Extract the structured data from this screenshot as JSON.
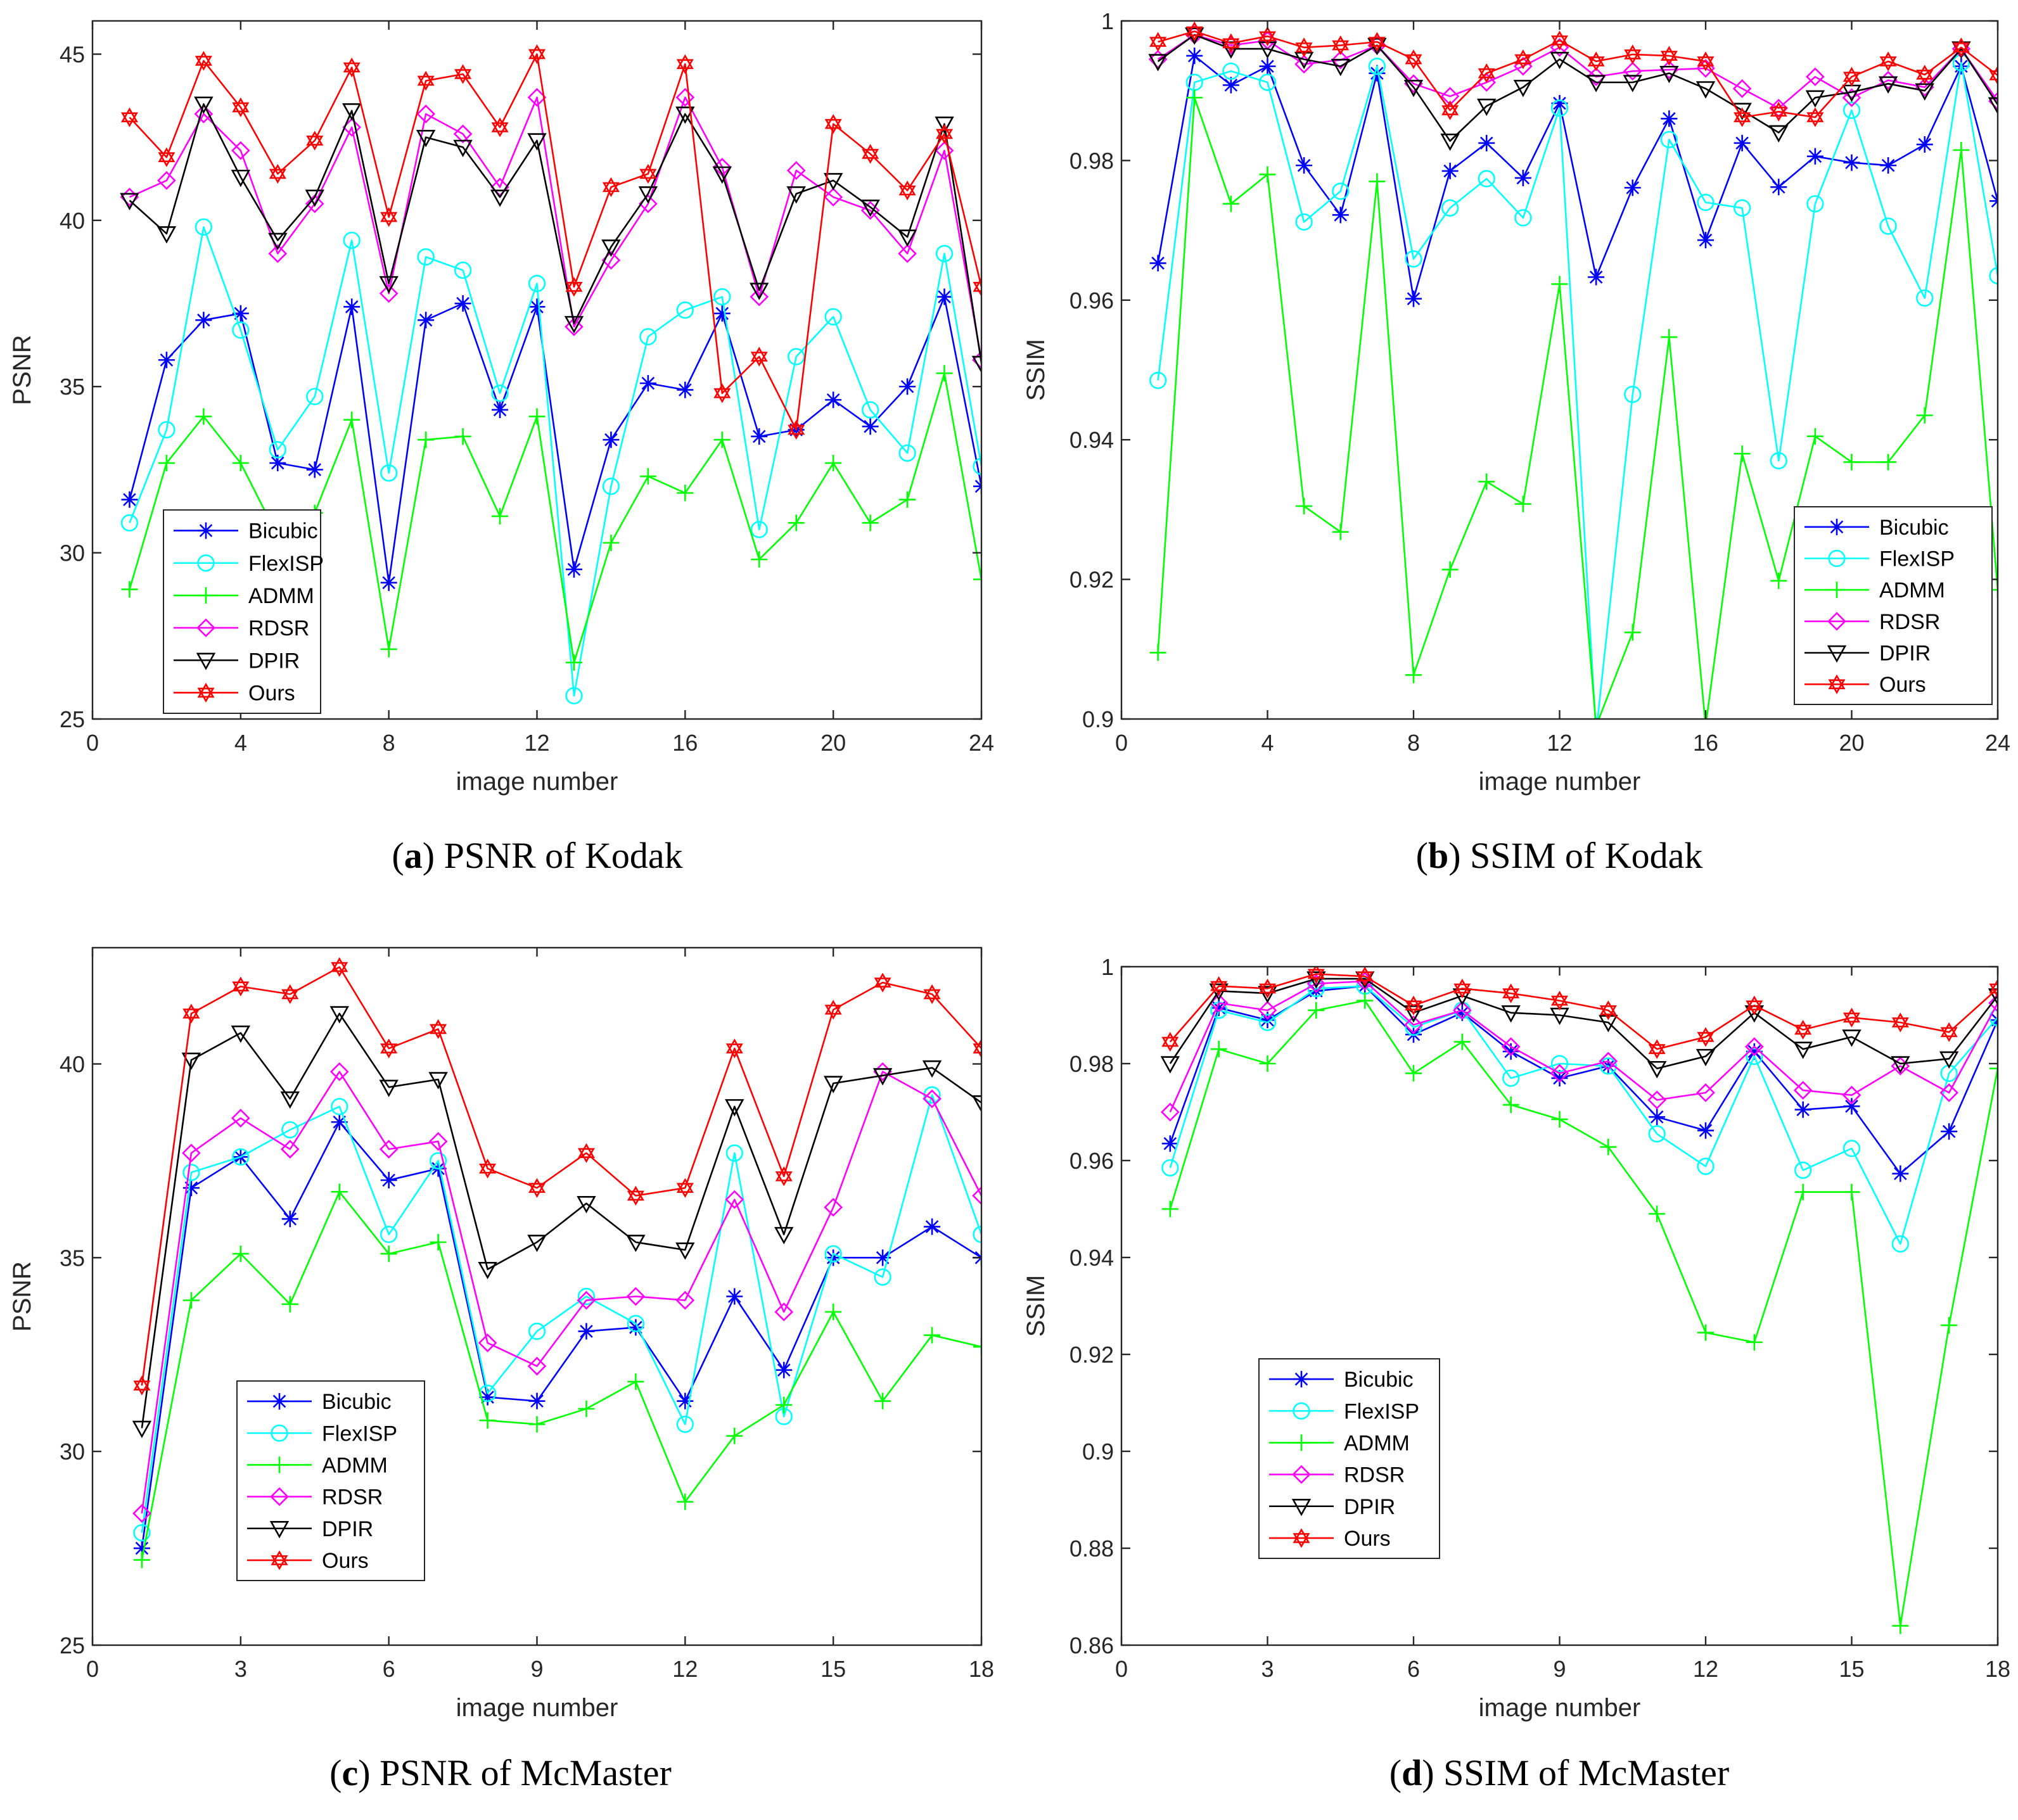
{
  "chart_data": [
    {
      "type": "line",
      "caption_letter": "a",
      "caption_text": "PSNR of Kodak",
      "xlabel": "image number",
      "ylabel": "PSNR",
      "xlim": [
        0,
        24
      ],
      "ylim": [
        25,
        46
      ],
      "xticks": [
        0,
        4,
        8,
        12,
        16,
        20,
        24
      ],
      "yticks": [
        25,
        30,
        35,
        40,
        45
      ],
      "grid": false,
      "legend_position": "lower-left",
      "x": [
        1,
        2,
        3,
        4,
        5,
        6,
        7,
        8,
        9,
        10,
        11,
        12,
        13,
        14,
        15,
        16,
        17,
        18,
        19,
        20,
        21,
        22,
        23,
        24
      ],
      "series": [
        {
          "name": "Bicubic",
          "color": "#0000ff",
          "marker": "asterisk",
          "values": [
            31.6,
            35.8,
            37.0,
            37.2,
            32.7,
            32.5,
            37.4,
            29.1,
            37.0,
            37.5,
            34.3,
            37.4,
            29.5,
            33.4,
            35.1,
            34.9,
            37.2,
            33.5,
            33.7,
            34.6,
            33.8,
            35.0,
            37.7,
            32.0
          ]
        },
        {
          "name": "FlexISP",
          "color": "#00ffff",
          "marker": "circle",
          "values": [
            30.9,
            33.7,
            39.8,
            36.7,
            33.1,
            34.7,
            39.4,
            32.4,
            38.9,
            38.5,
            34.8,
            38.1,
            25.7,
            32.0,
            36.5,
            37.3,
            37.7,
            30.7,
            35.9,
            37.1,
            34.3,
            33.0,
            39.0,
            32.6
          ]
        },
        {
          "name": "ADMM",
          "color": "#00ff00",
          "marker": "plus",
          "values": [
            28.9,
            32.7,
            34.1,
            32.7,
            30.5,
            31.2,
            34.0,
            27.1,
            33.4,
            33.5,
            31.1,
            34.1,
            26.7,
            30.3,
            32.3,
            31.8,
            33.4,
            29.8,
            30.9,
            32.7,
            30.9,
            31.6,
            35.4,
            29.2
          ]
        },
        {
          "name": "RDSR",
          "color": "#ff00ff",
          "marker": "diamond",
          "values": [
            40.7,
            41.2,
            43.2,
            42.1,
            39.0,
            40.5,
            42.8,
            37.8,
            43.2,
            42.6,
            41.0,
            43.7,
            36.8,
            38.8,
            40.5,
            43.7,
            41.6,
            37.7,
            41.5,
            40.7,
            40.3,
            39.0,
            42.1,
            35.8
          ]
        },
        {
          "name": "DPIR",
          "color": "#000000",
          "marker": "triangle-down",
          "values": [
            40.6,
            39.6,
            43.5,
            41.3,
            39.4,
            40.7,
            43.3,
            38.1,
            42.5,
            42.2,
            40.7,
            42.4,
            36.9,
            39.2,
            40.8,
            43.2,
            41.4,
            37.9,
            40.8,
            41.2,
            40.4,
            39.5,
            42.9,
            35.7
          ]
        },
        {
          "name": "Ours",
          "color": "#ff0000",
          "marker": "hexagram",
          "values": [
            43.1,
            41.9,
            44.8,
            43.4,
            41.4,
            42.4,
            44.6,
            40.1,
            44.2,
            44.4,
            42.8,
            45.0,
            38.0,
            41.0,
            41.4,
            44.7,
            34.8,
            35.9,
            33.7,
            42.9,
            42.0,
            40.9,
            42.6,
            38.0
          ]
        }
      ]
    },
    {
      "type": "line",
      "caption_letter": "b",
      "caption_text": "SSIM of Kodak",
      "xlabel": "image number",
      "ylabel": "SSIM",
      "xlim": [
        0,
        24
      ],
      "ylim": [
        0.9,
        1.0
      ],
      "xticks": [
        0,
        4,
        8,
        12,
        16,
        20,
        24
      ],
      "yticks": [
        0.9,
        0.92,
        0.94,
        0.96,
        0.98,
        1
      ],
      "grid": false,
      "legend_position": "lower-right",
      "x": [
        1,
        2,
        3,
        4,
        5,
        6,
        7,
        8,
        9,
        10,
        11,
        12,
        13,
        14,
        15,
        16,
        17,
        18,
        19,
        20,
        21,
        22,
        23,
        24
      ],
      "series": [
        {
          "name": "Bicubic",
          "color": "#0000ff",
          "marker": "asterisk",
          "values": [
            0.9653,
            0.995,
            0.9908,
            0.9935,
            0.9793,
            0.9722,
            0.9925,
            0.9602,
            0.9785,
            0.9825,
            0.9775,
            0.9882,
            0.9633,
            0.9761,
            0.986,
            0.9686,
            0.9825,
            0.9762,
            0.9806,
            0.9797,
            0.9793,
            0.9823,
            0.9935,
            0.9742
          ]
        },
        {
          "name": "FlexISP",
          "color": "#00ffff",
          "marker": "circle",
          "values": [
            0.9485,
            0.9912,
            0.9928,
            0.9912,
            0.9712,
            0.9756,
            0.9935,
            0.9659,
            0.9732,
            0.9774,
            0.9718,
            0.9875,
            0.898,
            0.9465,
            0.983,
            0.974,
            0.9732,
            0.937,
            0.9738,
            0.9872,
            0.9706,
            0.9603,
            0.994,
            0.9635
          ]
        },
        {
          "name": "ADMM",
          "color": "#00ff00",
          "marker": "plus",
          "values": [
            0.9095,
            0.989,
            0.9738,
            0.978,
            0.9305,
            0.9268,
            0.977,
            0.9063,
            0.9214,
            0.934,
            0.9308,
            0.9623,
            0.899,
            0.9124,
            0.9547,
            0.899,
            0.938,
            0.9198,
            0.9405,
            0.9368,
            0.9368,
            0.9435,
            0.9815,
            0.9185
          ]
        },
        {
          "name": "RDSR",
          "color": "#ff00ff",
          "marker": "diamond",
          "values": [
            0.9945,
            0.998,
            0.9965,
            0.9972,
            0.9938,
            0.9944,
            0.9965,
            0.991,
            0.9892,
            0.9912,
            0.9935,
            0.9962,
            0.992,
            0.9928,
            0.993,
            0.9932,
            0.9903,
            0.9875,
            0.992,
            0.989,
            0.9915,
            0.9905,
            0.996,
            0.9885
          ]
        },
        {
          "name": "DPIR",
          "color": "#000000",
          "marker": "triangle-down",
          "values": [
            0.9942,
            0.998,
            0.996,
            0.996,
            0.9945,
            0.9935,
            0.9965,
            0.9905,
            0.9828,
            0.9878,
            0.9905,
            0.9945,
            0.9912,
            0.9912,
            0.9925,
            0.9903,
            0.9872,
            0.984,
            0.989,
            0.9898,
            0.991,
            0.99,
            0.996,
            0.988
          ]
        },
        {
          "name": "Ours",
          "color": "#ff0000",
          "marker": "hexagram",
          "values": [
            0.997,
            0.9985,
            0.9968,
            0.9978,
            0.9962,
            0.9965,
            0.997,
            0.9945,
            0.9872,
            0.9925,
            0.9945,
            0.9972,
            0.9942,
            0.9952,
            0.995,
            0.9942,
            0.9862,
            0.987,
            0.9862,
            0.992,
            0.9942,
            0.9923,
            0.9962,
            0.9922
          ]
        }
      ]
    },
    {
      "type": "line",
      "caption_letter": "c",
      "caption_text": "PSNR of McMaster",
      "xlabel": "image number",
      "ylabel": "PSNR",
      "xlim": [
        0,
        18
      ],
      "ylim": [
        25,
        43
      ],
      "xticks": [
        0,
        3,
        6,
        9,
        12,
        15,
        18
      ],
      "yticks": [
        25,
        30,
        35,
        40
      ],
      "grid": false,
      "legend_position": "lower-left",
      "x": [
        1,
        2,
        3,
        4,
        5,
        6,
        7,
        8,
        9,
        10,
        11,
        12,
        13,
        14,
        15,
        16,
        17,
        18
      ],
      "series": [
        {
          "name": "Bicubic",
          "color": "#0000ff",
          "marker": "asterisk",
          "values": [
            27.5,
            36.8,
            37.6,
            36.0,
            38.5,
            37.0,
            37.3,
            31.4,
            31.3,
            33.1,
            33.2,
            31.3,
            34.0,
            32.1,
            35.0,
            35.0,
            35.8,
            35.0
          ]
        },
        {
          "name": "FlexISP",
          "color": "#00ffff",
          "marker": "circle",
          "values": [
            27.9,
            37.2,
            37.6,
            38.3,
            38.9,
            35.6,
            37.5,
            31.5,
            33.1,
            34.0,
            33.3,
            30.7,
            37.7,
            30.9,
            35.1,
            34.5,
            39.2,
            35.6
          ]
        },
        {
          "name": "ADMM",
          "color": "#00ff00",
          "marker": "plus",
          "values": [
            27.2,
            33.9,
            35.1,
            33.8,
            36.7,
            35.1,
            35.4,
            30.8,
            30.7,
            31.1,
            31.8,
            28.7,
            30.4,
            31.2,
            33.6,
            31.3,
            33.0,
            32.7
          ]
        },
        {
          "name": "RDSR",
          "color": "#ff00ff",
          "marker": "diamond",
          "values": [
            28.4,
            37.7,
            38.6,
            37.8,
            39.8,
            37.8,
            38.0,
            32.8,
            32.2,
            33.9,
            34.0,
            33.9,
            36.5,
            33.6,
            36.3,
            39.8,
            39.1,
            36.6
          ]
        },
        {
          "name": "DPIR",
          "color": "#000000",
          "marker": "triangle-down",
          "values": [
            30.6,
            40.1,
            40.8,
            39.1,
            41.3,
            39.4,
            39.6,
            34.7,
            35.4,
            36.4,
            35.4,
            35.2,
            38.9,
            35.6,
            39.5,
            39.7,
            39.9,
            39.0
          ]
        },
        {
          "name": "Ours",
          "color": "#ff0000",
          "marker": "hexagram",
          "values": [
            31.7,
            41.3,
            42.0,
            41.8,
            42.5,
            40.4,
            40.9,
            37.3,
            36.8,
            37.7,
            36.6,
            36.8,
            40.4,
            37.1,
            41.4,
            42.1,
            41.8,
            40.4
          ]
        }
      ]
    },
    {
      "type": "line",
      "caption_letter": "d",
      "caption_text": "SSIM of McMaster",
      "xlabel": "image number",
      "ylabel": "SSIM",
      "xlim": [
        0,
        18
      ],
      "ylim": [
        0.86,
        1.0
      ],
      "xticks": [
        0,
        3,
        6,
        9,
        12,
        15,
        18
      ],
      "yticks": [
        0.86,
        0.88,
        0.9,
        0.92,
        0.94,
        0.96,
        0.98,
        1
      ],
      "grid": false,
      "legend_position": "lower-left",
      "x": [
        1,
        2,
        3,
        4,
        5,
        6,
        7,
        8,
        9,
        10,
        11,
        12,
        13,
        14,
        15,
        16,
        17,
        18
      ],
      "series": [
        {
          "name": "Bicubic",
          "color": "#0000ff",
          "marker": "asterisk",
          "values": [
            0.9635,
            0.9915,
            0.989,
            0.995,
            0.996,
            0.986,
            0.9905,
            0.9825,
            0.977,
            0.9795,
            0.969,
            0.9662,
            0.9825,
            0.9705,
            0.9712,
            0.9573,
            0.966,
            0.989
          ]
        },
        {
          "name": "FlexISP",
          "color": "#00ffff",
          "marker": "circle",
          "values": [
            0.9585,
            0.991,
            0.9885,
            0.9955,
            0.996,
            0.9875,
            0.991,
            0.977,
            0.98,
            0.9795,
            0.9655,
            0.9588,
            0.9815,
            0.958,
            0.9625,
            0.9428,
            0.978,
            0.9895
          ]
        },
        {
          "name": "ADMM",
          "color": "#00ff00",
          "marker": "plus",
          "values": [
            0.95,
            0.983,
            0.98,
            0.991,
            0.993,
            0.978,
            0.9845,
            0.9715,
            0.9685,
            0.9628,
            0.949,
            0.9245,
            0.9225,
            0.9535,
            0.9535,
            0.864,
            0.926,
            0.979
          ]
        },
        {
          "name": "RDSR",
          "color": "#ff00ff",
          "marker": "diamond",
          "values": [
            0.97,
            0.9925,
            0.991,
            0.9965,
            0.997,
            0.988,
            0.991,
            0.9835,
            0.978,
            0.9805,
            0.9725,
            0.974,
            0.9835,
            0.9745,
            0.9735,
            0.9795,
            0.974,
            0.9925
          ]
        },
        {
          "name": "DPIR",
          "color": "#000000",
          "marker": "triangle-down",
          "values": [
            0.98,
            0.995,
            0.9945,
            0.9975,
            0.9975,
            0.9905,
            0.994,
            0.9905,
            0.99,
            0.9885,
            0.979,
            0.9815,
            0.9905,
            0.983,
            0.9855,
            0.98,
            0.981,
            0.994
          ]
        },
        {
          "name": "Ours",
          "color": "#ff0000",
          "marker": "hexagram",
          "values": [
            0.9845,
            0.996,
            0.9955,
            0.9985,
            0.998,
            0.992,
            0.9955,
            0.9945,
            0.993,
            0.991,
            0.983,
            0.9855,
            0.992,
            0.987,
            0.9895,
            0.9885,
            0.9865,
            0.9955
          ]
        }
      ]
    }
  ]
}
